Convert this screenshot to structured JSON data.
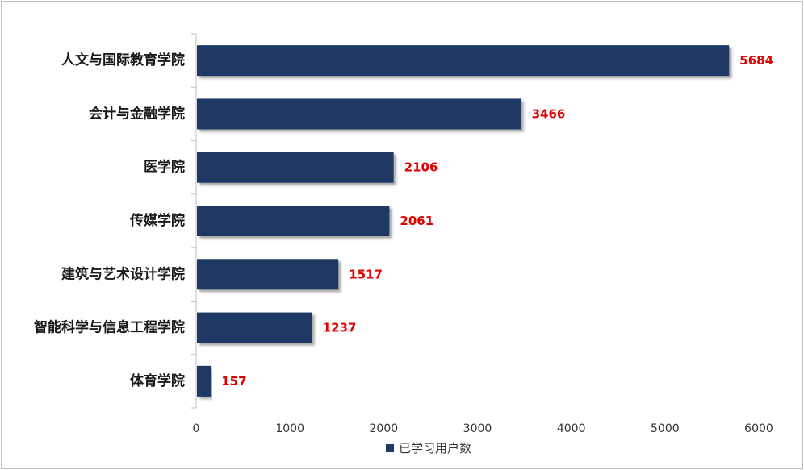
{
  "chart_data": {
    "type": "bar",
    "orientation": "horizontal",
    "categories": [
      "人文与国际教育学院",
      "会计与金融学院",
      "医学院",
      "传媒学院",
      "建筑与艺术设计学院",
      "智能科学与信息工程学院",
      "体育学院"
    ],
    "series": [
      {
        "name": "已学习用户数",
        "values": [
          5684,
          3466,
          2106,
          2061,
          1517,
          1237,
          157
        ]
      }
    ],
    "xlim": [
      0,
      6000
    ],
    "xticks": [
      0,
      1000,
      2000,
      3000,
      4000,
      5000,
      6000
    ],
    "grid": false,
    "legend_position": "bottom",
    "data_labels": true,
    "colors": {
      "bar": "#1f3864",
      "data_label": "#e00000",
      "axis": "#bfbfbf"
    }
  }
}
